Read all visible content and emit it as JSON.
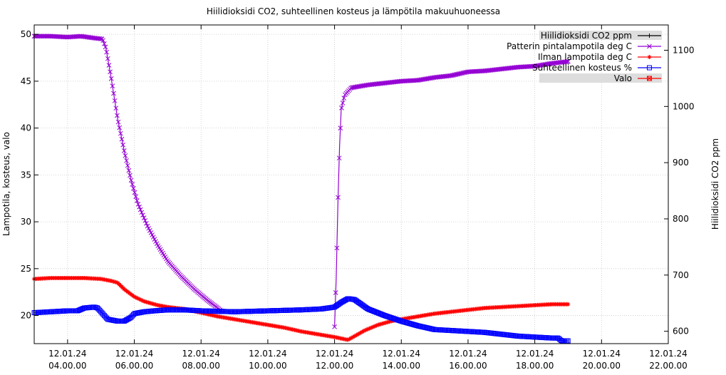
{
  "chart_data": {
    "type": "line",
    "title": "Hiilidioksidi CO2, suhteellinen kosteus ja lämpötila makuuhuoneessa",
    "ylabel": "Lampotila, kosteus, valo",
    "y2label": "Hiilidioksidi CO2 ppm",
    "xlim": [
      3.0,
      22.0
    ],
    "ylim": [
      17,
      51
    ],
    "y2lim": [
      578,
      1145
    ],
    "grid": true,
    "legend_position": "top-right",
    "x_ticks": [
      {
        "x": 4,
        "date": "12.01.24",
        "time": "04.00.00"
      },
      {
        "x": 6,
        "date": "12.01.24",
        "time": "06.00.00"
      },
      {
        "x": 8,
        "date": "12.01.24",
        "time": "08.00.00"
      },
      {
        "x": 10,
        "date": "12.01.24",
        "time": "10.00.00"
      },
      {
        "x": 12,
        "date": "12.01.24",
        "time": "12.00.00"
      },
      {
        "x": 14,
        "date": "12.01.24",
        "time": "14.00.00"
      },
      {
        "x": 16,
        "date": "12.01.24",
        "time": "16.00.00"
      },
      {
        "x": 18,
        "date": "12.01.24",
        "time": "18.00.00"
      },
      {
        "x": 20,
        "date": "12.01.24",
        "time": "20.00.00"
      },
      {
        "x": 22,
        "date": "12.01.24",
        "time": "22.00.00"
      }
    ],
    "y_ticks": [
      20,
      25,
      30,
      35,
      40,
      45,
      50
    ],
    "y2_ticks": [
      600,
      700,
      800,
      900,
      1000,
      1100
    ],
    "series": [
      {
        "name": "Hiilidioksidi CO2 ppm",
        "color": "#000000",
        "marker": "plus",
        "inactive": true,
        "points": []
      },
      {
        "name": "Patterin pintalampotila deg C",
        "color": "#9400d3",
        "marker": "cross",
        "points": [
          [
            3.0,
            49.8
          ],
          [
            3.5,
            49.8
          ],
          [
            4.0,
            49.7
          ],
          [
            4.4,
            49.8
          ],
          [
            4.8,
            49.6
          ],
          [
            5.05,
            49.5
          ],
          [
            5.15,
            48.5
          ],
          [
            5.3,
            45.5
          ],
          [
            5.5,
            41.0
          ],
          [
            5.7,
            37.5
          ],
          [
            5.9,
            34.5
          ],
          [
            6.1,
            32.0
          ],
          [
            6.4,
            29.5
          ],
          [
            6.7,
            27.5
          ],
          [
            7.0,
            25.8
          ],
          [
            7.4,
            24.2
          ],
          [
            7.8,
            22.8
          ],
          [
            8.2,
            21.6
          ],
          [
            8.5,
            20.8
          ],
          [
            8.6,
            20.5
          ],
          [
            12.0,
            18.8
          ],
          [
            12.05,
            24.0
          ],
          [
            12.1,
            32.0
          ],
          [
            12.15,
            38.0
          ],
          [
            12.2,
            42.0
          ],
          [
            12.3,
            43.5
          ],
          [
            12.5,
            44.3
          ],
          [
            13.0,
            44.6
          ],
          [
            13.5,
            44.8
          ],
          [
            14.0,
            45.0
          ],
          [
            14.5,
            45.1
          ],
          [
            15.0,
            45.4
          ],
          [
            15.5,
            45.6
          ],
          [
            16.0,
            46.0
          ],
          [
            16.5,
            46.1
          ],
          [
            17.0,
            46.3
          ],
          [
            17.5,
            46.5
          ],
          [
            18.0,
            46.6
          ],
          [
            18.5,
            46.9
          ],
          [
            19.0,
            47.1
          ]
        ]
      },
      {
        "name": "Ilman lampotila deg C",
        "color": "#ff0000",
        "marker": "star",
        "points": [
          [
            3.0,
            23.9
          ],
          [
            3.5,
            24.0
          ],
          [
            4.0,
            24.0
          ],
          [
            4.5,
            24.0
          ],
          [
            5.0,
            23.9
          ],
          [
            5.3,
            23.7
          ],
          [
            5.5,
            23.5
          ],
          [
            5.7,
            22.8
          ],
          [
            6.0,
            22.0
          ],
          [
            6.3,
            21.5
          ],
          [
            6.7,
            21.1
          ],
          [
            7.0,
            20.9
          ],
          [
            7.5,
            20.7
          ],
          [
            8.0,
            20.3
          ],
          [
            8.5,
            19.9
          ],
          [
            9.0,
            19.6
          ],
          [
            9.5,
            19.3
          ],
          [
            10.0,
            19.0
          ],
          [
            10.5,
            18.7
          ],
          [
            11.0,
            18.3
          ],
          [
            11.5,
            18.0
          ],
          [
            12.0,
            17.7
          ],
          [
            12.4,
            17.4
          ],
          [
            12.6,
            17.8
          ],
          [
            12.9,
            18.4
          ],
          [
            13.3,
            19.0
          ],
          [
            13.7,
            19.4
          ],
          [
            14.0,
            19.6
          ],
          [
            14.5,
            19.9
          ],
          [
            15.0,
            20.2
          ],
          [
            15.5,
            20.4
          ],
          [
            16.0,
            20.6
          ],
          [
            16.5,
            20.8
          ],
          [
            17.0,
            20.9
          ],
          [
            17.5,
            21.0
          ],
          [
            18.0,
            21.1
          ],
          [
            18.5,
            21.2
          ],
          [
            19.0,
            21.2
          ]
        ]
      },
      {
        "name": "Suhteellinen kosteus %",
        "color": "#0000ff",
        "marker": "square",
        "points": [
          [
            3.0,
            20.3
          ],
          [
            3.5,
            20.4
          ],
          [
            4.0,
            20.5
          ],
          [
            4.3,
            20.5
          ],
          [
            4.5,
            20.8
          ],
          [
            4.8,
            20.9
          ],
          [
            4.9,
            20.8
          ],
          [
            5.0,
            20.4
          ],
          [
            5.2,
            19.6
          ],
          [
            5.5,
            19.4
          ],
          [
            5.7,
            19.4
          ],
          [
            5.9,
            19.8
          ],
          [
            6.0,
            20.2
          ],
          [
            6.3,
            20.4
          ],
          [
            6.6,
            20.5
          ],
          [
            7.0,
            20.6
          ],
          [
            7.5,
            20.6
          ],
          [
            8.0,
            20.5
          ],
          [
            9.0,
            20.4
          ],
          [
            10.0,
            20.5
          ],
          [
            11.0,
            20.6
          ],
          [
            11.6,
            20.7
          ],
          [
            12.0,
            20.9
          ],
          [
            12.2,
            21.4
          ],
          [
            12.4,
            21.8
          ],
          [
            12.6,
            21.7
          ],
          [
            12.8,
            21.2
          ],
          [
            13.0,
            20.7
          ],
          [
            13.5,
            20.0
          ],
          [
            14.0,
            19.4
          ],
          [
            14.5,
            18.9
          ],
          [
            15.0,
            18.5
          ],
          [
            15.5,
            18.4
          ],
          [
            16.0,
            18.3
          ],
          [
            16.5,
            18.2
          ],
          [
            17.0,
            18.0
          ],
          [
            17.5,
            17.8
          ],
          [
            18.0,
            17.7
          ],
          [
            18.5,
            17.6
          ],
          [
            18.7,
            17.6
          ],
          [
            18.8,
            17.3
          ],
          [
            19.0,
            17.3
          ]
        ]
      },
      {
        "name": "Valo",
        "color": "#ff0000",
        "marker": "boxed-x",
        "inactive": true,
        "points": []
      }
    ]
  }
}
